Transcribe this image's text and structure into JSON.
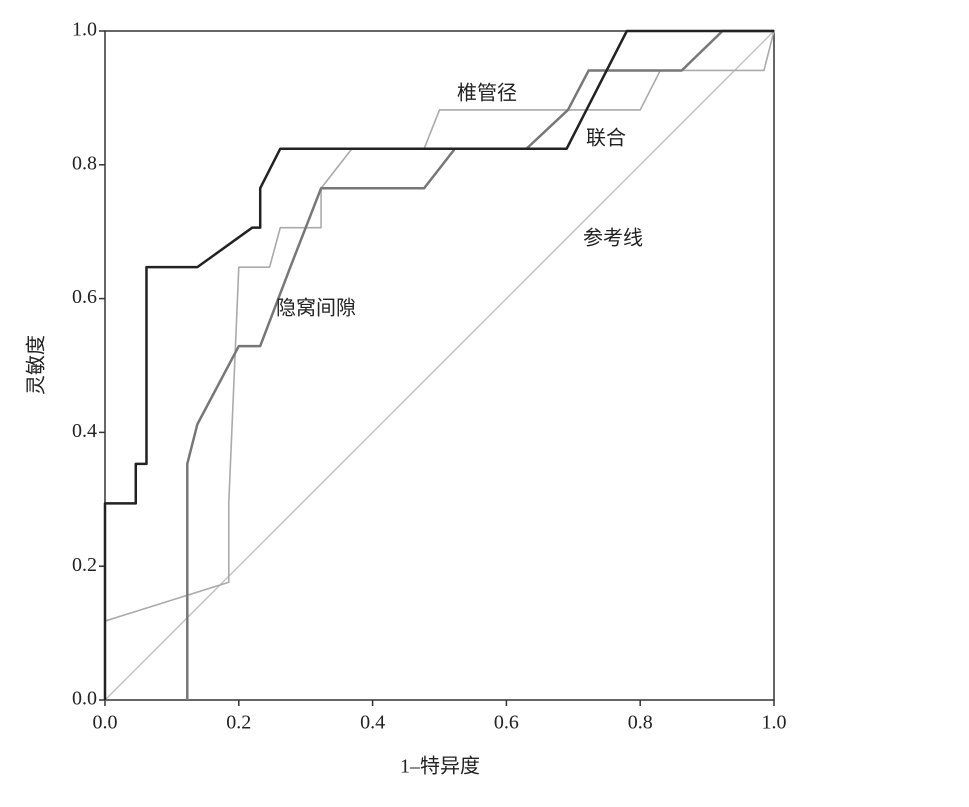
{
  "chart_data": {
    "type": "line",
    "xlabel": "1–特异度",
    "ylabel": "灵敏度",
    "xlim": [
      0,
      1
    ],
    "ylim": [
      0,
      1
    ],
    "xticks": [
      {
        "value": 0,
        "label": "0.0"
      },
      0.2,
      0.4,
      0.6,
      0.8,
      {
        "value": 1,
        "label": "1.0"
      }
    ],
    "yticks": [
      {
        "value": 0,
        "label": "0.0"
      },
      0.2,
      0.4,
      0.6,
      0.8,
      {
        "value": 1,
        "label": "1.0"
      }
    ],
    "series": [
      {
        "name": "联合",
        "color": "#222222",
        "x": [
          0,
          0,
          0.046,
          0.046,
          0.062,
          0.062,
          0.138,
          0.22,
          0.232,
          0.232,
          0.262,
          0.69,
          0.78,
          1
        ],
        "values": [
          0,
          0.294,
          0.294,
          0.353,
          0.353,
          0.647,
          0.647,
          0.706,
          0.706,
          0.765,
          0.824,
          0.824,
          1,
          1
        ]
      },
      {
        "name": "隐窝间隙",
        "color": "#777777",
        "x": [
          0.123,
          0.123,
          0.138,
          0.2,
          0.232,
          0.277,
          0.323,
          0.477,
          0.523,
          0.63,
          0.692,
          0.723,
          0.862,
          0.923,
          1
        ],
        "values": [
          0,
          0.353,
          0.412,
          0.529,
          0.529,
          0.647,
          0.765,
          0.765,
          0.824,
          0.824,
          0.882,
          0.941,
          0.941,
          1,
          1
        ]
      },
      {
        "name": "椎管径",
        "color": "#aaaaaa",
        "x": [
          0,
          0.185,
          0.185,
          0.2,
          0.246,
          0.262,
          0.323,
          0.323,
          0.369,
          0.477,
          0.5,
          0.8,
          0.83,
          0.985,
          1
        ],
        "values": [
          0.118,
          0.176,
          0.294,
          0.647,
          0.647,
          0.706,
          0.706,
          0.765,
          0.824,
          0.824,
          0.882,
          0.882,
          0.941,
          0.941,
          1
        ]
      },
      {
        "name": "参考线",
        "color": "#bbbbbb",
        "x": [
          0,
          1
        ],
        "values": [
          0,
          1
        ]
      }
    ]
  }
}
